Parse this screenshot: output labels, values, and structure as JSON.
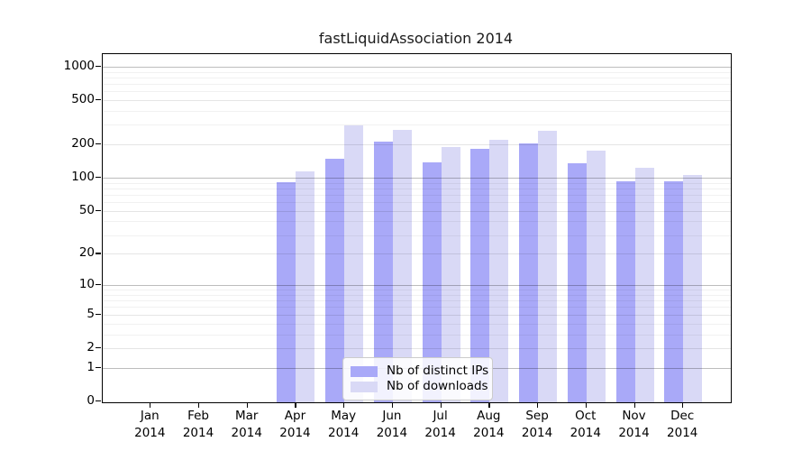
{
  "chart_data": {
    "type": "bar",
    "title": "fastLiquidAssociation 2014",
    "xlabel": "",
    "ylabel": "",
    "year_label": "2014",
    "categories": [
      "Jan",
      "Feb",
      "Mar",
      "Apr",
      "May",
      "Jun",
      "Jul",
      "Aug",
      "Sep",
      "Oct",
      "Nov",
      "Dec"
    ],
    "series": [
      {
        "name": "Nb of distinct IPs",
        "color": "#a9a9f8",
        "values": [
          0,
          0,
          0,
          91,
          148,
          211,
          139,
          181,
          204,
          135,
          93,
          92
        ]
      },
      {
        "name": "Nb of downloads",
        "color": "#d9d9f6",
        "values": [
          0,
          0,
          0,
          114,
          298,
          268,
          188,
          221,
          263,
          176,
          123,
          105
        ]
      }
    ],
    "y_scale": "log1p",
    "y_ticks": [
      0,
      1,
      2,
      5,
      10,
      20,
      50,
      100,
      200,
      500,
      1000
    ],
    "y_tick_labels": [
      "0",
      "1",
      "2",
      "5",
      "10",
      "20",
      "50",
      "100",
      "200",
      "500",
      "1000"
    ],
    "y_major_gridlines": [
      1,
      10,
      100,
      1000
    ],
    "y_minor_gridlines": [
      3,
      4,
      6,
      7,
      8,
      9,
      30,
      40,
      60,
      70,
      80,
      90,
      300,
      400,
      600,
      700,
      800,
      900
    ],
    "ylim": [
      0,
      1280
    ],
    "grid": true,
    "legend": {
      "position": "bottom-center",
      "entries": [
        "Nb of distinct IPs",
        "Nb of downloads"
      ]
    }
  }
}
